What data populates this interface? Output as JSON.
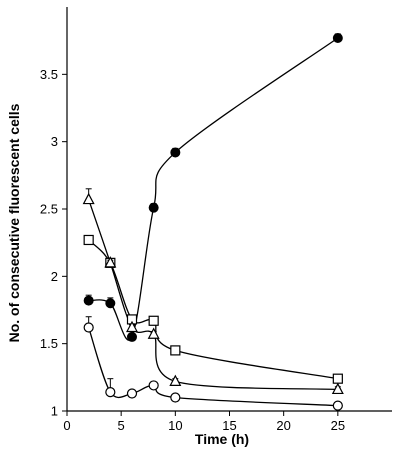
{
  "chart_data": {
    "type": "line",
    "xlabel": "Time (h)",
    "ylabel": "No. of consecutive fluorescent cells",
    "xlim": [
      0,
      30
    ],
    "ylim": [
      1,
      4
    ],
    "xticks": [
      0,
      5,
      10,
      15,
      20,
      25
    ],
    "yticks": [
      1,
      1.5,
      2,
      2.5,
      3,
      3.5
    ],
    "ytick_labels": [
      "1",
      "1.5",
      "2",
      "2.5",
      "3",
      "3.5"
    ],
    "grid": false,
    "legend": "none",
    "series": [
      {
        "marker": "filled-circle",
        "x": [
          2,
          4,
          6,
          8,
          10,
          25
        ],
        "y": [
          1.82,
          1.8,
          1.55,
          2.51,
          2.92,
          3.77
        ],
        "err": [
          0.04,
          0.04,
          0.02,
          0.03,
          0.03,
          0.03
        ]
      },
      {
        "marker": "open-square",
        "x": [
          2,
          4,
          6,
          8,
          10,
          25
        ],
        "y": [
          2.27,
          2.1,
          1.68,
          1.67,
          1.45,
          1.24
        ],
        "err": [
          0.03,
          0.02,
          0.02,
          0.02,
          0.02,
          0.02
        ]
      },
      {
        "marker": "open-triangle",
        "x": [
          2,
          4,
          6,
          8,
          10,
          25
        ],
        "y": [
          2.57,
          2.1,
          1.62,
          1.57,
          1.22,
          1.16
        ],
        "err": [
          0.08,
          0.02,
          0.02,
          0.02,
          0.02,
          0.02
        ]
      },
      {
        "marker": "open-circle",
        "x": [
          2,
          4,
          6,
          8,
          10,
          25
        ],
        "y": [
          1.62,
          1.14,
          1.13,
          1.19,
          1.1,
          1.04
        ],
        "err": [
          0.08,
          0.1,
          0.02,
          0.02,
          0.02,
          0.02
        ]
      }
    ]
  }
}
